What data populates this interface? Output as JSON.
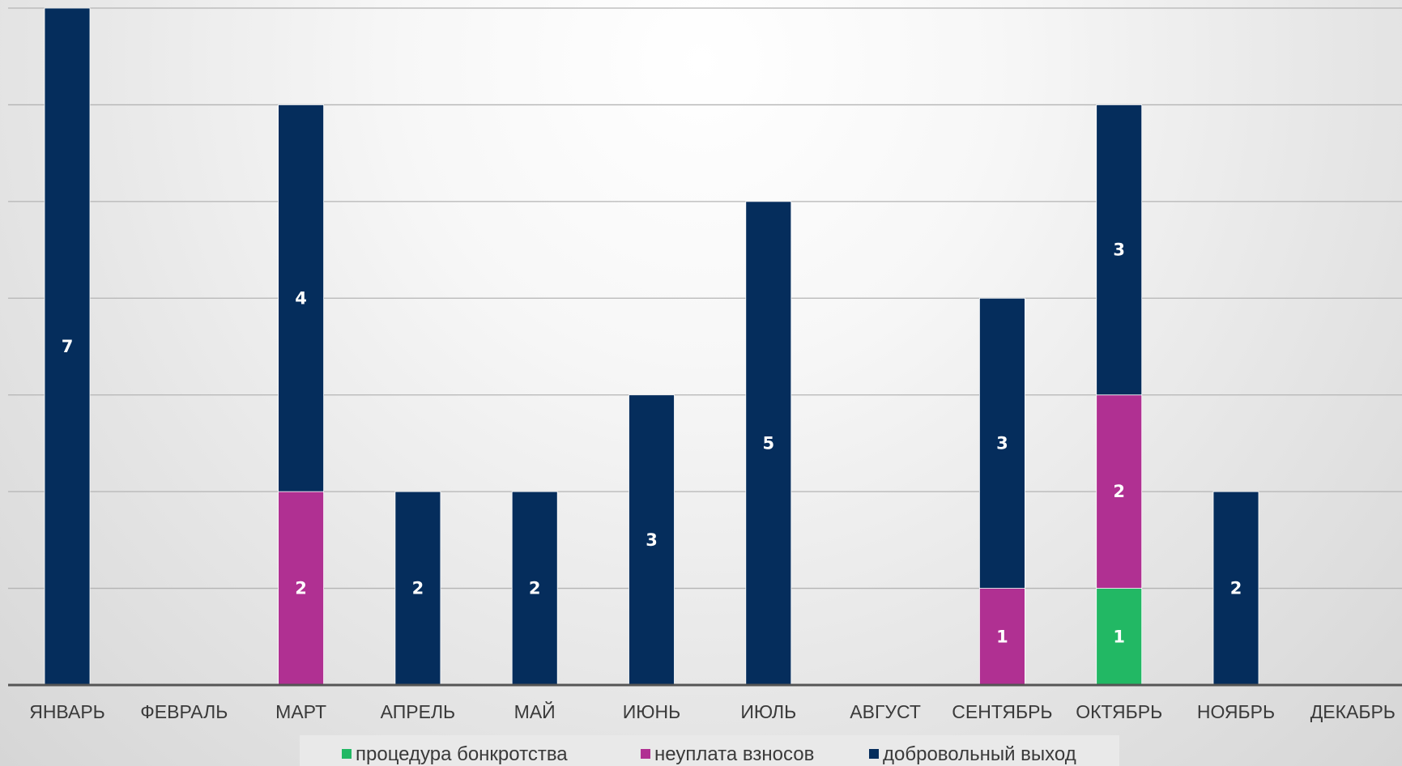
{
  "chart_data": {
    "type": "bar",
    "stacked": true,
    "categories": [
      "ЯНВАРЬ",
      "ФЕВРАЛЬ",
      "МАРТ",
      "АПРЕЛЬ",
      "МАЙ",
      "ИЮНЬ",
      "ИЮЛЬ",
      "АВГУСТ",
      "СЕНТЯБРЬ",
      "ОКТЯБРЬ",
      "НОЯБРЬ",
      "ДЕКАБРЬ"
    ],
    "series": [
      {
        "name": "процедура бонкротства",
        "color": "#22b864",
        "values": [
          0,
          0,
          0,
          0,
          0,
          0,
          0,
          0,
          0,
          1,
          0,
          0
        ]
      },
      {
        "name": "неуплата взносов",
        "color": "#b03092",
        "values": [
          0,
          0,
          2,
          0,
          0,
          0,
          0,
          0,
          1,
          2,
          0,
          0
        ]
      },
      {
        "name": "добровольный выход",
        "color": "#052d5c",
        "values": [
          7,
          0,
          4,
          2,
          2,
          3,
          5,
          0,
          3,
          3,
          2,
          0
        ]
      }
    ],
    "ylim": [
      0,
      7
    ],
    "grid": true,
    "y_tick_labels_shown": false,
    "legend": "bottom",
    "title": "",
    "xlabel": "",
    "ylabel": ""
  }
}
